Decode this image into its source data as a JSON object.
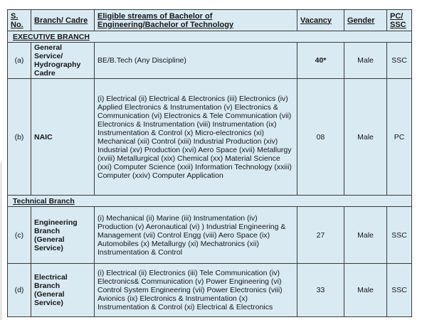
{
  "document": {
    "background": "#ffffff",
    "table_background": "#d9eaf3",
    "border_color": "#3a3a3a",
    "text_color": "#161616"
  },
  "table": {
    "columns": [
      "S. No.",
      "Branch/ Cadre",
      "Eligible streams of Bachelor of Engineering/Bachelor of Technology",
      "Vacancy",
      "Gender",
      "PC/ SSC"
    ],
    "rows": [
      {
        "type": "section",
        "label": "EXECUTIVE BRANCH"
      },
      {
        "type": "data",
        "sno": "(a)",
        "branch": "General Service/ Hydrography Cadre",
        "streams": "BE/B.Tech (Any Discipline)",
        "vacancy": "40*",
        "vacancy_bold": true,
        "gender": "Male",
        "pcssc": "SSC"
      },
      {
        "type": "data",
        "sno": "(b)",
        "branch": "NAIC",
        "streams": "(i) Electrical (ii) Electrical & Electronics (iii) Electronics (iv) Applied Electronics & Instrumentation (v) Electronics & Communication (vi) Electronics & Tele Communication (vii) Electronics & Instrumentation (viii) Instrumentation (ix) Instrumentation & Control (x) Micro-electronics (xi) Mechanical (xii) Control (xiii) Industrial Production (xiv) Industrial (xv) Production (xvi) Aero Space (xvii) Metallurgy (xviii) Metallurgical (xix) Chemical (xx) Material Science (xxi) Computer Science (xxii) Information Technology (xxiii) Computer (xxiv) Computer Application",
        "vacancy": "08",
        "vacancy_bold": false,
        "gender": "Male",
        "pcssc": "PC"
      },
      {
        "type": "section",
        "label": "Technical Branch"
      },
      {
        "type": "data",
        "sno": "(c)",
        "branch": "Engineering Branch (General Service)",
        "streams": "(i) Mechanical (ii) Marine (iii) Instrumentation (iv) Production (v) Aeronautical (vi) ) Industrial Engineering & Management (vii) Control Engg (viii) Aero Space (ix) Automobiles (x) Metallurgy (xi) Mechatronics (xii) Instrumentation & Control",
        "vacancy": "27",
        "vacancy_bold": false,
        "gender": "Male",
        "pcssc": "SSC"
      },
      {
        "type": "data",
        "sno": "(d)",
        "branch": "Electrical Branch (General Service)",
        "streams": "(i) Electrical (ii) Electronics (iii) Tele Communication (iv) Electronics& Communication (v) Power Engineering (vi) Control System Engineering (vii) Power Electronics (viii) Avionics (ix) Electronics & Instrumentation (x) Instrumentation & Control (xi) Electrical & Electronics",
        "vacancy": "33",
        "vacancy_bold": false,
        "gender": "Male",
        "pcssc": "SSC"
      }
    ]
  }
}
